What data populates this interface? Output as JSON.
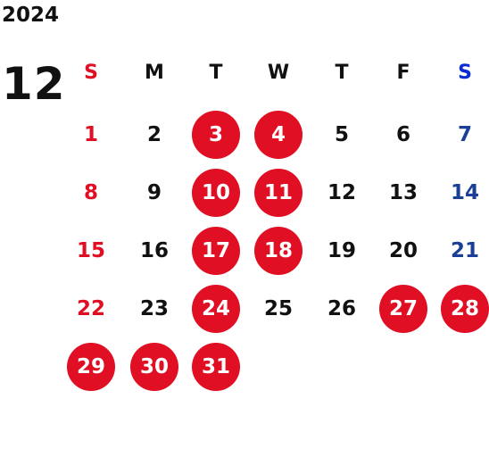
{
  "calendar": {
    "year": "2024",
    "month": "12",
    "weekdays": [
      "S",
      "M",
      "T",
      "W",
      "T",
      "F",
      "S"
    ],
    "colors": {
      "sunday": "#e00f24",
      "saturday": "#1b3f96",
      "saturday_header": "#0a2bd6",
      "weekday": "#111111",
      "highlight": "#e00f24",
      "highlight_text": "#ffffff"
    },
    "days": [
      {
        "day": "1",
        "col": 0,
        "row": 0,
        "highlight": false
      },
      {
        "day": "2",
        "col": 1,
        "row": 0,
        "highlight": false
      },
      {
        "day": "3",
        "col": 2,
        "row": 0,
        "highlight": true
      },
      {
        "day": "4",
        "col": 3,
        "row": 0,
        "highlight": true
      },
      {
        "day": "5",
        "col": 4,
        "row": 0,
        "highlight": false
      },
      {
        "day": "6",
        "col": 5,
        "row": 0,
        "highlight": false
      },
      {
        "day": "7",
        "col": 6,
        "row": 0,
        "highlight": false
      },
      {
        "day": "8",
        "col": 0,
        "row": 1,
        "highlight": false
      },
      {
        "day": "9",
        "col": 1,
        "row": 1,
        "highlight": false
      },
      {
        "day": "10",
        "col": 2,
        "row": 1,
        "highlight": true
      },
      {
        "day": "11",
        "col": 3,
        "row": 1,
        "highlight": true
      },
      {
        "day": "12",
        "col": 4,
        "row": 1,
        "highlight": false
      },
      {
        "day": "13",
        "col": 5,
        "row": 1,
        "highlight": false
      },
      {
        "day": "14",
        "col": 6,
        "row": 1,
        "highlight": false
      },
      {
        "day": "15",
        "col": 0,
        "row": 2,
        "highlight": false
      },
      {
        "day": "16",
        "col": 1,
        "row": 2,
        "highlight": false
      },
      {
        "day": "17",
        "col": 2,
        "row": 2,
        "highlight": true
      },
      {
        "day": "18",
        "col": 3,
        "row": 2,
        "highlight": true
      },
      {
        "day": "19",
        "col": 4,
        "row": 2,
        "highlight": false
      },
      {
        "day": "20",
        "col": 5,
        "row": 2,
        "highlight": false
      },
      {
        "day": "21",
        "col": 6,
        "row": 2,
        "highlight": false
      },
      {
        "day": "22",
        "col": 0,
        "row": 3,
        "highlight": false
      },
      {
        "day": "23",
        "col": 1,
        "row": 3,
        "highlight": false
      },
      {
        "day": "24",
        "col": 2,
        "row": 3,
        "highlight": true
      },
      {
        "day": "25",
        "col": 3,
        "row": 3,
        "highlight": false
      },
      {
        "day": "26",
        "col": 4,
        "row": 3,
        "highlight": false
      },
      {
        "day": "27",
        "col": 5,
        "row": 3,
        "highlight": true
      },
      {
        "day": "28",
        "col": 6,
        "row": 3,
        "highlight": true
      },
      {
        "day": "29",
        "col": 0,
        "row": 4,
        "highlight": true
      },
      {
        "day": "30",
        "col": 1,
        "row": 4,
        "highlight": true
      },
      {
        "day": "31",
        "col": 2,
        "row": 4,
        "highlight": true
      }
    ]
  }
}
